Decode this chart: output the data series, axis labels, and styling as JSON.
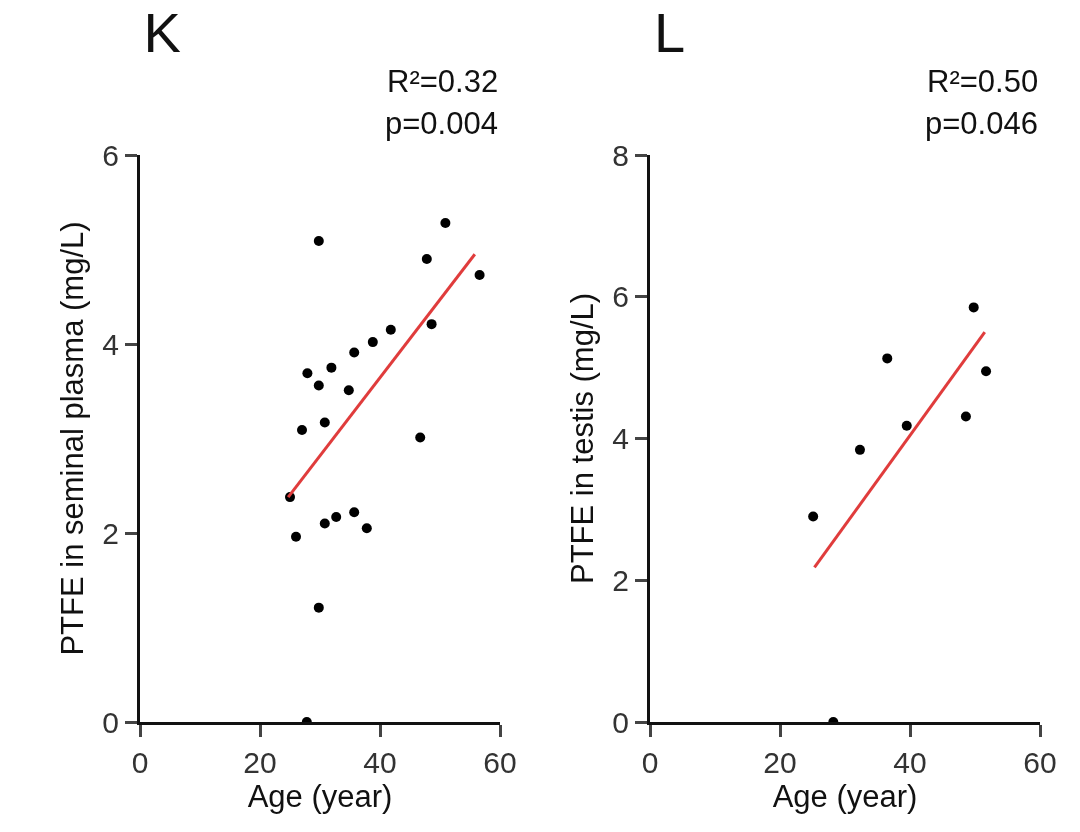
{
  "chart_data": [
    {
      "type": "scatter",
      "title": "K",
      "xlabel": "Age (year)",
      "ylabel": "PTFE in seminal plasma (mg/L)",
      "annotations": [
        "R²=0.32",
        "p=0.004"
      ],
      "xlim": [
        0,
        60
      ],
      "xticks": [
        0,
        20,
        40,
        60
      ],
      "ylim": [
        0,
        6
      ],
      "yticks": [
        0,
        2,
        4,
        6
      ],
      "grid": false,
      "legend": false,
      "series": [
        {
          "marker": "circle",
          "color": "#000000",
          "x": [
            25.0,
            26.0,
            27.0,
            27.9,
            29.8,
            29.8,
            29.8,
            30.8,
            30.8,
            31.9,
            32.7,
            34.8,
            35.7,
            35.7,
            37.8,
            38.8,
            41.8,
            46.7,
            47.8,
            48.6,
            50.9,
            56.6,
            27.8
          ],
          "values": [
            2.38,
            1.96,
            3.09,
            3.69,
            3.56,
            5.09,
            1.21,
            3.17,
            2.1,
            3.75,
            2.17,
            3.51,
            3.91,
            2.22,
            2.05,
            4.02,
            4.15,
            3.01,
            4.9,
            4.21,
            5.28,
            4.73,
            0
          ]
        },
        {
          "type": "line",
          "marker": "none",
          "color": "#e03c3c",
          "x": [
            24.7,
            55.8
          ],
          "values": [
            2.38,
            4.95
          ]
        }
      ]
    },
    {
      "type": "scatter",
      "title": "L",
      "xlabel": "Age (year)",
      "ylabel": "PTFE in testis (mg/L)",
      "annotations": [
        "R²=0.50",
        "p=0.046"
      ],
      "xlim": [
        0,
        60
      ],
      "xticks": [
        0,
        20,
        40,
        60
      ],
      "ylim": [
        0,
        8
      ],
      "yticks": [
        0,
        2,
        4,
        6,
        8
      ],
      "grid": false,
      "legend": false,
      "series": [
        {
          "marker": "circle",
          "color": "#000000",
          "x": [
            25.1,
            32.3,
            36.5,
            39.5,
            48.6,
            49.8,
            51.7,
            28.2
          ],
          "values": [
            2.9,
            3.84,
            5.13,
            4.18,
            4.31,
            5.85,
            4.95,
            0
          ]
        },
        {
          "type": "line",
          "marker": "none",
          "color": "#e03c3c",
          "x": [
            25.3,
            51.5
          ],
          "values": [
            2.18,
            5.5
          ]
        }
      ]
    }
  ]
}
